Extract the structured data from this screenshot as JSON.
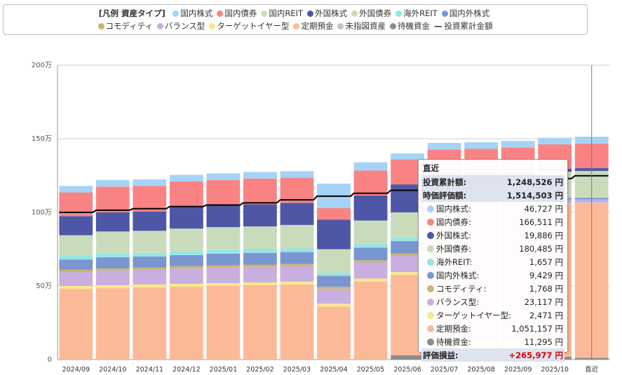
{
  "legend": {
    "title": "[凡例 資産タイプ]",
    "items": [
      {
        "name": "国内株式",
        "color": "#a6d3f5"
      },
      {
        "name": "国内債券",
        "color": "#f98383"
      },
      {
        "name": "国内REIT",
        "color": "#c5dfbf"
      },
      {
        "name": "外国株式",
        "color": "#4e56a6"
      },
      {
        "name": "外国債券",
        "color": "#c8dcbc"
      },
      {
        "name": "海外REIT",
        "color": "#96e5e5"
      },
      {
        "name": "国内外株式",
        "color": "#7996d1"
      },
      {
        "name": "コモディティ",
        "color": "#cbb56f"
      },
      {
        "name": "バランス型",
        "color": "#c9aee0"
      },
      {
        "name": "ターゲットイヤー型",
        "color": "#f8e88a"
      },
      {
        "name": "定期預金",
        "color": "#fcb998"
      },
      {
        "name": "未指図資産",
        "color": "#c4c4c4"
      },
      {
        "name": "待機資金",
        "color": "#8c8c8c"
      }
    ],
    "line_item": {
      "name": "投資累計金額",
      "symbol": "—"
    }
  },
  "chart_data": {
    "type": "bar",
    "stacked": true,
    "ylim": [
      0,
      2000000
    ],
    "yticks": [
      0,
      500000,
      1000000,
      1500000,
      2000000
    ],
    "ytick_labels": [
      "0",
      "50万",
      "100万",
      "150万",
      "200万"
    ],
    "grid": true,
    "legend_position": "top",
    "categories": [
      "2024/09",
      "2024/10",
      "2024/11",
      "2024/12",
      "2025/01",
      "2025/02",
      "2025/03",
      "2025/04",
      "2025/05",
      "2025/06",
      "2025/07",
      "2025/08",
      "2025/09",
      "2025/10",
      "直近"
    ],
    "series": [
      {
        "name": "待機資金",
        "color": "#8c8c8c",
        "values": [
          0,
          0,
          0,
          0,
          0,
          0,
          0,
          0,
          0,
          30000,
          20000,
          20000,
          20000,
          20000,
          11295
        ]
      },
      {
        "name": "定期預金",
        "color": "#fcb998",
        "values": [
          480000,
          485000,
          490000,
          495000,
          500000,
          505000,
          510000,
          360000,
          530000,
          545000,
          1000000,
          1010000,
          1020000,
          1040000,
          1051157
        ]
      },
      {
        "name": "ターゲットイヤー型",
        "color": "#f8e88a",
        "values": [
          20000,
          20000,
          20000,
          20000,
          20000,
          20000,
          20000,
          20000,
          20000,
          20000,
          10000,
          5000,
          5000,
          3000,
          2471
        ]
      },
      {
        "name": "バランス型",
        "color": "#c9aee0",
        "values": [
          95000,
          100000,
          100000,
          105000,
          105000,
          105000,
          105000,
          100000,
          110000,
          110000,
          25000,
          25000,
          24000,
          24000,
          23117
        ]
      },
      {
        "name": "コモディティ",
        "color": "#cbb56f",
        "values": [
          15000,
          15000,
          15000,
          15000,
          15000,
          15000,
          15000,
          15000,
          15000,
          15000,
          2000,
          2000,
          2000,
          2000,
          1768
        ]
      },
      {
        "name": "国内外株式",
        "color": "#7996d1",
        "values": [
          70000,
          75000,
          75000,
          75000,
          80000,
          80000,
          80000,
          75000,
          85000,
          85000,
          15000,
          12000,
          10000,
          10000,
          9429
        ]
      },
      {
        "name": "海外REIT",
        "color": "#96e5e5",
        "values": [
          25000,
          25000,
          25000,
          25000,
          25000,
          25000,
          25000,
          20000,
          25000,
          25000,
          5000,
          3000,
          2000,
          2000,
          1657
        ]
      },
      {
        "name": "外国債券",
        "color": "#c8dcbc",
        "values": [
          140000,
          150000,
          150000,
          155000,
          155000,
          155000,
          160000,
          160000,
          160000,
          170000,
          160000,
          165000,
          170000,
          175000,
          180485
        ]
      },
      {
        "name": "外国株式",
        "color": "#4e56a6",
        "values": [
          130000,
          130000,
          130000,
          150000,
          150000,
          150000,
          150000,
          200000,
          170000,
          190000,
          30000,
          25000,
          22000,
          21000,
          19886
        ]
      },
      {
        "name": "国内債券",
        "color": "#f98383",
        "values": [
          160000,
          175000,
          175000,
          170000,
          170000,
          175000,
          170000,
          80000,
          170000,
          170000,
          160000,
          165000,
          165000,
          165000,
          166511
        ]
      },
      {
        "name": "国内株式",
        "color": "#a6d3f5",
        "values": [
          45000,
          45000,
          45000,
          45000,
          45000,
          45000,
          45000,
          165000,
          55000,
          40000,
          45000,
          45000,
          45000,
          45000,
          46727
        ]
      }
    ],
    "line": {
      "name": "投資累計金額",
      "color": "#000000",
      "values": [
        1000000,
        1015000,
        1025000,
        1040000,
        1050000,
        1065000,
        1085000,
        1110000,
        1130000,
        1150000,
        1170000,
        1190000,
        1210000,
        1230000,
        1248526
      ]
    }
  },
  "tooltip": {
    "header": "直近",
    "invested": {
      "label": "投資累計額:",
      "value": "1,248,526 円"
    },
    "valuation": {
      "label": "時価評価額:",
      "value": "1,514,503 円"
    },
    "rows": [
      {
        "label": "国内株式:",
        "value": "46,727 円",
        "color": "#a6d3f5"
      },
      {
        "label": "国内債券:",
        "value": "166,511 円",
        "color": "#f98383"
      },
      {
        "label": "外国株式:",
        "value": "19,886 円",
        "color": "#4e56a6"
      },
      {
        "label": "外国債券:",
        "value": "180,485 円",
        "color": "#c8dcbc"
      },
      {
        "label": "海外REIT:",
        "value": "1,657 円",
        "color": "#96e5e5"
      },
      {
        "label": "国内外株式:",
        "value": "9,429 円",
        "color": "#7996d1"
      },
      {
        "label": "コモディティ:",
        "value": "1,768 円",
        "color": "#cbb56f"
      },
      {
        "label": "バランス型:",
        "value": "23,117 円",
        "color": "#c9aee0"
      },
      {
        "label": "ターゲットイヤー型:",
        "value": "2,471 円",
        "color": "#f8e88a"
      },
      {
        "label": "定期預金:",
        "value": "1,051,157 円",
        "color": "#fcb998"
      },
      {
        "label": "待機資金:",
        "value": "11,295 円",
        "color": "#8c8c8c"
      }
    ],
    "gain": {
      "label": "評価損益:",
      "value": "+265,977 円"
    }
  }
}
